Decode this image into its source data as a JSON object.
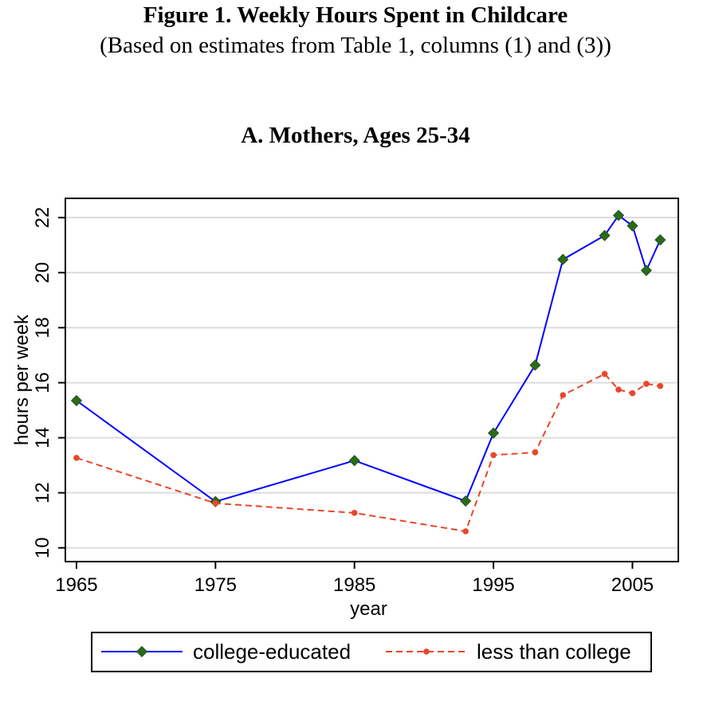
{
  "figure": {
    "title": "Figure 1.  Weekly Hours Spent in Childcare",
    "subtitle": "(Based on estimates from Table 1, columns (1) and (3))"
  },
  "chart_data": {
    "type": "line",
    "title": "A.  Mothers, Ages 25-34",
    "xlabel": "year",
    "ylabel": "hours per week",
    "xlim": [
      1964.2,
      2008.3
    ],
    "ylim": [
      9.5,
      22.7
    ],
    "xticks": [
      1965,
      1975,
      1985,
      1995,
      2005
    ],
    "yticks": [
      10,
      12,
      14,
      16,
      18,
      20,
      22
    ],
    "grid": true,
    "legend_position": "bottom",
    "series": [
      {
        "name": "college-educated",
        "color": "#0000ff",
        "marker_color": "#2a6a1a",
        "marker": "diamond",
        "dash": "solid",
        "x": [
          1965,
          1975,
          1985,
          1993,
          1995,
          1998,
          2000,
          2003,
          2004,
          2005,
          2006,
          2007
        ],
        "y": [
          15.35,
          11.68,
          13.17,
          11.7,
          14.17,
          16.64,
          20.48,
          21.35,
          22.08,
          21.7,
          20.08,
          21.19
        ]
      },
      {
        "name": "less than college",
        "color": "#e8472a",
        "marker_color": "#e8472a",
        "marker": "circle",
        "dash": "dashed",
        "x": [
          1965,
          1975,
          1985,
          1993,
          1995,
          1998,
          2000,
          2003,
          2004,
          2005,
          2006,
          2007
        ],
        "y": [
          13.27,
          11.62,
          11.27,
          10.6,
          13.37,
          13.47,
          15.55,
          16.32,
          15.75,
          15.62,
          15.96,
          15.88
        ]
      }
    ]
  }
}
